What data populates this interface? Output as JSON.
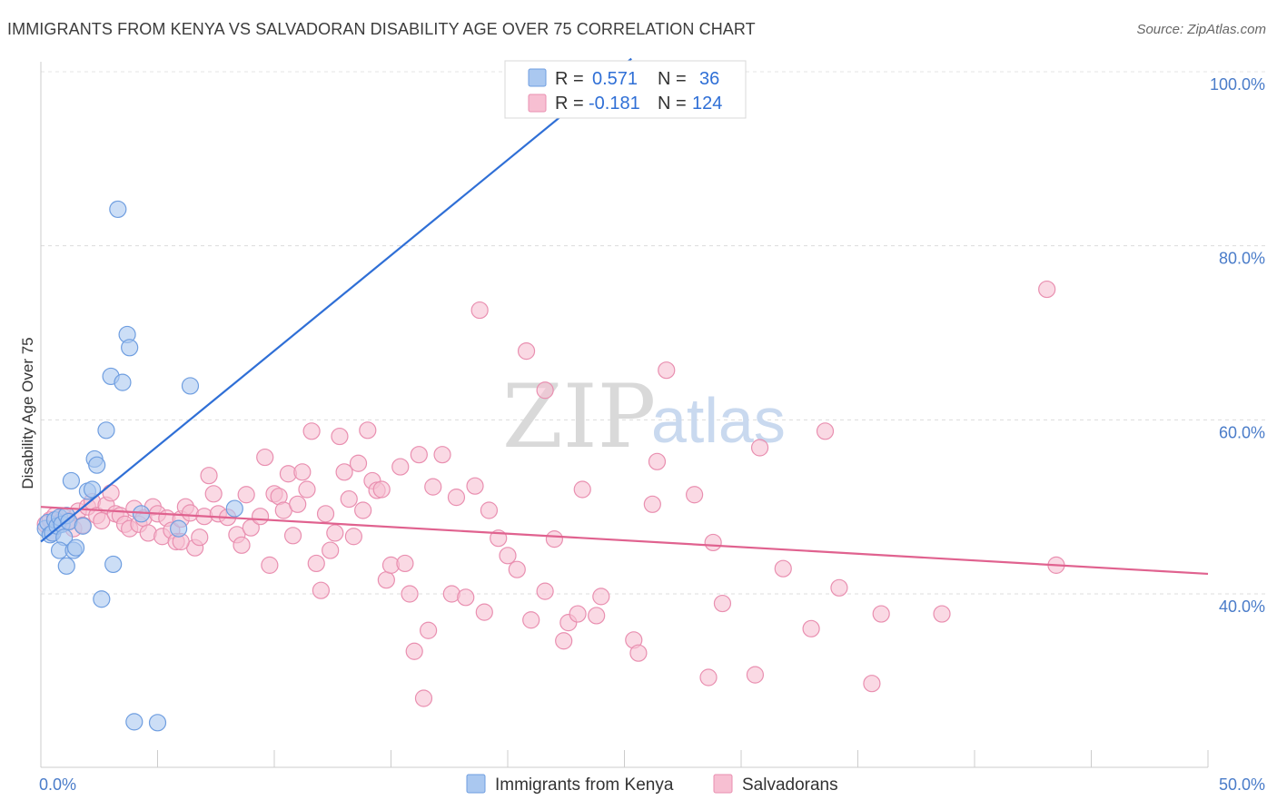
{
  "header": {
    "title": "IMMIGRANTS FROM KENYA VS SALVADORAN DISABILITY AGE OVER 75 CORRELATION CHART",
    "source": "Source: ZipAtlas.com"
  },
  "watermark": {
    "zip": "ZIP",
    "atlas": "atlas"
  },
  "legend": {
    "r_label": "R =",
    "n_label": "N =",
    "rows": [
      {
        "r": "0.571",
        "n": "36"
      },
      {
        "r": "-0.181",
        "n": "124"
      }
    ]
  },
  "chart_data": {
    "type": "scatter",
    "title": "IMMIGRANTS FROM KENYA VS SALVADORAN DISABILITY AGE OVER 75 CORRELATION CHART",
    "xlabel": "",
    "ylabel": "Disability Age Over 75",
    "xlim": [
      0,
      50
    ],
    "ylim": [
      20,
      103
    ],
    "x_tick_labels": [
      "0.0%",
      "50.0%"
    ],
    "y_ticks": [
      40,
      60,
      80,
      100
    ],
    "y_tick_labels": [
      "40.0%",
      "60.0%",
      "80.0%",
      "100.0%"
    ],
    "grid": true,
    "legend_placement": "top-center",
    "colors": {
      "kenya_fill": "#aac8f0",
      "kenya_stroke": "#6f9ee0",
      "kenya_line": "#2f6fd6",
      "salv_fill": "#f7bfd2",
      "salv_stroke": "#e98fb0",
      "salv_line": "#e0628f"
    },
    "series": [
      {
        "name": "Immigrants from Kenya",
        "r": 0.571,
        "n": 36,
        "trend": {
          "x": [
            0,
            25.3
          ],
          "y": [
            46,
            101.5
          ]
        },
        "points": [
          [
            0.2,
            47.5
          ],
          [
            0.3,
            48.2
          ],
          [
            0.4,
            46.8
          ],
          [
            0.5,
            47.0
          ],
          [
            0.6,
            48.5
          ],
          [
            0.7,
            47.8
          ],
          [
            0.8,
            48.8
          ],
          [
            0.9,
            48.0
          ],
          [
            1.0,
            46.5
          ],
          [
            1.1,
            49.0
          ],
          [
            1.2,
            48.3
          ],
          [
            0.8,
            45.0
          ],
          [
            1.1,
            43.2
          ],
          [
            1.4,
            45.0
          ],
          [
            1.5,
            45.3
          ],
          [
            1.8,
            47.8
          ],
          [
            1.3,
            53.0
          ],
          [
            2.0,
            51.8
          ],
          [
            2.2,
            52.0
          ],
          [
            2.3,
            55.5
          ],
          [
            2.4,
            54.8
          ],
          [
            2.8,
            58.8
          ],
          [
            3.0,
            65.0
          ],
          [
            3.5,
            64.3
          ],
          [
            3.7,
            69.8
          ],
          [
            3.8,
            68.3
          ],
          [
            3.3,
            84.2
          ],
          [
            2.6,
            39.4
          ],
          [
            3.1,
            43.4
          ],
          [
            4.0,
            25.3
          ],
          [
            5.0,
            25.2
          ],
          [
            4.3,
            49.2
          ],
          [
            5.9,
            47.5
          ],
          [
            6.4,
            63.9
          ],
          [
            8.3,
            49.8
          ],
          [
            23.4,
            100.2
          ]
        ]
      },
      {
        "name": "Salvadorans",
        "r": -0.181,
        "n": 124,
        "trend": {
          "x": [
            0,
            50
          ],
          "y": [
            50,
            42.3
          ]
        },
        "points": [
          [
            0.2,
            48.0
          ],
          [
            0.4,
            48.5
          ],
          [
            0.5,
            47.0
          ],
          [
            0.6,
            49.0
          ],
          [
            0.8,
            48.2
          ],
          [
            1.0,
            48.8
          ],
          [
            1.2,
            48.4
          ],
          [
            1.4,
            47.5
          ],
          [
            1.6,
            49.5
          ],
          [
            1.8,
            47.9
          ],
          [
            2.0,
            50.0
          ],
          [
            2.2,
            50.6
          ],
          [
            2.4,
            49.0
          ],
          [
            2.6,
            48.4
          ],
          [
            2.8,
            50.2
          ],
          [
            3.0,
            51.6
          ],
          [
            3.2,
            49.2
          ],
          [
            3.4,
            49.0
          ],
          [
            3.6,
            48.0
          ],
          [
            3.8,
            47.5
          ],
          [
            4.0,
            49.8
          ],
          [
            4.2,
            48.0
          ],
          [
            4.4,
            48.7
          ],
          [
            4.6,
            47.0
          ],
          [
            4.8,
            50.0
          ],
          [
            5.0,
            49.2
          ],
          [
            5.2,
            46.6
          ],
          [
            5.4,
            48.7
          ],
          [
            5.6,
            47.3
          ],
          [
            5.8,
            46.0
          ],
          [
            6.0,
            48.6
          ],
          [
            6.2,
            50.0
          ],
          [
            6.4,
            49.3
          ],
          [
            6.6,
            45.3
          ],
          [
            6.8,
            46.5
          ],
          [
            7.0,
            48.9
          ],
          [
            7.2,
            53.6
          ],
          [
            7.4,
            51.5
          ],
          [
            7.6,
            49.2
          ],
          [
            8.0,
            48.8
          ],
          [
            8.4,
            46.8
          ],
          [
            8.6,
            45.6
          ],
          [
            8.8,
            51.4
          ],
          [
            9.0,
            47.6
          ],
          [
            9.4,
            48.9
          ],
          [
            9.6,
            55.7
          ],
          [
            9.8,
            43.3
          ],
          [
            10.0,
            51.5
          ],
          [
            10.2,
            51.2
          ],
          [
            10.4,
            49.6
          ],
          [
            10.6,
            53.8
          ],
          [
            10.8,
            46.7
          ],
          [
            11.0,
            50.3
          ],
          [
            11.2,
            54.0
          ],
          [
            11.4,
            52.0
          ],
          [
            11.6,
            58.7
          ],
          [
            11.8,
            43.5
          ],
          [
            12.0,
            40.4
          ],
          [
            12.2,
            49.2
          ],
          [
            12.4,
            45.0
          ],
          [
            12.6,
            47.0
          ],
          [
            12.8,
            58.1
          ],
          [
            13.0,
            54.0
          ],
          [
            13.2,
            50.9
          ],
          [
            13.4,
            46.6
          ],
          [
            13.6,
            55.0
          ],
          [
            13.8,
            49.6
          ],
          [
            14.0,
            58.8
          ],
          [
            14.2,
            53.0
          ],
          [
            14.4,
            51.9
          ],
          [
            14.6,
            52.0
          ],
          [
            14.8,
            41.6
          ],
          [
            15.0,
            43.3
          ],
          [
            15.4,
            54.6
          ],
          [
            15.6,
            43.5
          ],
          [
            15.8,
            40.0
          ],
          [
            16.0,
            33.4
          ],
          [
            16.2,
            56.0
          ],
          [
            16.4,
            28.0
          ],
          [
            16.6,
            35.8
          ],
          [
            16.8,
            52.3
          ],
          [
            17.2,
            56.0
          ],
          [
            17.6,
            40.0
          ],
          [
            17.8,
            51.1
          ],
          [
            18.2,
            39.6
          ],
          [
            18.6,
            52.4
          ],
          [
            18.8,
            72.6
          ],
          [
            19.0,
            37.9
          ],
          [
            19.2,
            49.6
          ],
          [
            19.6,
            46.4
          ],
          [
            20.0,
            44.4
          ],
          [
            20.4,
            42.8
          ],
          [
            20.8,
            67.9
          ],
          [
            21.0,
            37.0
          ],
          [
            21.6,
            63.4
          ],
          [
            22.0,
            46.3
          ],
          [
            21.6,
            40.3
          ],
          [
            22.4,
            34.6
          ],
          [
            22.6,
            36.7
          ],
          [
            23.0,
            37.7
          ],
          [
            23.2,
            52.0
          ],
          [
            24.0,
            39.7
          ],
          [
            25.4,
            34.7
          ],
          [
            25.6,
            33.2
          ],
          [
            26.2,
            50.3
          ],
          [
            26.4,
            55.2
          ],
          [
            26.8,
            65.7
          ],
          [
            28.0,
            51.4
          ],
          [
            28.6,
            30.4
          ],
          [
            28.8,
            45.9
          ],
          [
            29.2,
            38.9
          ],
          [
            30.6,
            30.7
          ],
          [
            30.8,
            56.8
          ],
          [
            31.8,
            42.9
          ],
          [
            33.0,
            36.0
          ],
          [
            33.6,
            58.7
          ],
          [
            34.2,
            40.7
          ],
          [
            35.6,
            29.7
          ],
          [
            36.0,
            37.7
          ],
          [
            38.6,
            37.7
          ],
          [
            43.1,
            75.0
          ],
          [
            43.5,
            43.3
          ],
          [
            23.8,
            37.5
          ],
          [
            6.0,
            46.0
          ]
        ]
      }
    ]
  },
  "bottom_legend": [
    {
      "label": "Immigrants from Kenya"
    },
    {
      "label": "Salvadorans"
    }
  ]
}
